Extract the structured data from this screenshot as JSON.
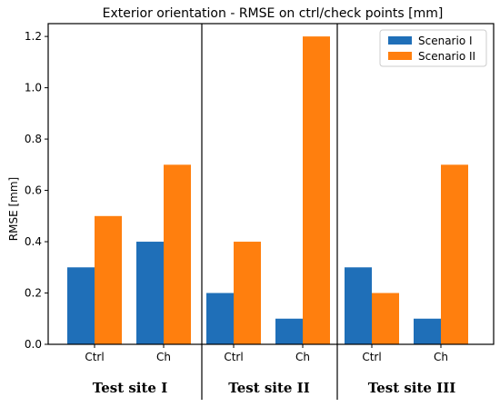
{
  "chart_data": {
    "type": "bar",
    "title": "Exterior orientation - RMSE on ctrl/check points [mm]",
    "xlabel": "",
    "ylabel": "RMSE [mm]",
    "ylim": [
      0,
      1.25
    ],
    "yticks": [
      "0.0",
      "0.2",
      "0.4",
      "0.6",
      "0.8",
      "1.0",
      "1.2"
    ],
    "grid": false,
    "legend_position": "top-right",
    "groups": [
      "Test site I",
      "Test site II",
      "Test site III"
    ],
    "categories": [
      "Ctrl",
      "Ch",
      "Ctrl",
      "Ch",
      "Ctrl",
      "Ch"
    ],
    "series": [
      {
        "name": "Scenario I",
        "color": "#1f6fb8",
        "values": [
          0.3,
          0.4,
          0.2,
          0.1,
          0.3,
          0.1
        ]
      },
      {
        "name": "Scenario II",
        "color": "#ff7f0e",
        "values": [
          0.5,
          0.7,
          0.4,
          1.2,
          0.2,
          0.7
        ]
      }
    ]
  }
}
